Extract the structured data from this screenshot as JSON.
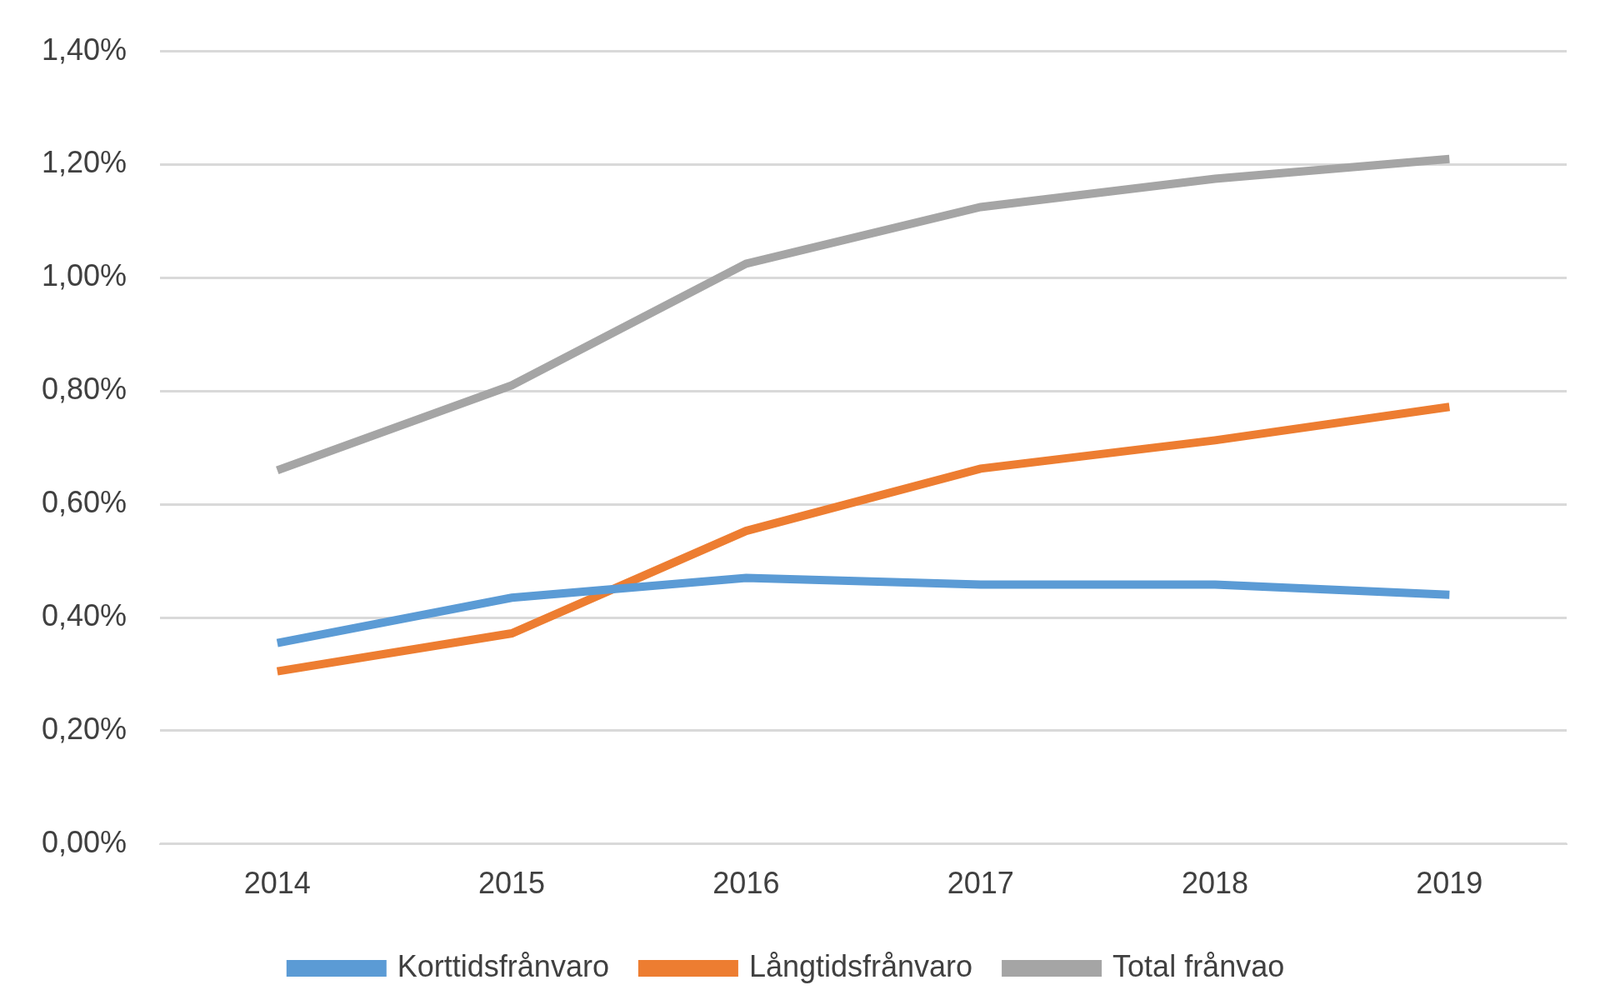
{
  "chart_data": {
    "type": "line",
    "categories": [
      "2014",
      "2015",
      "2016",
      "2017",
      "2018",
      "2019"
    ],
    "series": [
      {
        "name": "Korttidsfrånvaro",
        "color": "#5b9bd5",
        "values": [
          0.355,
          0.435,
          0.47,
          0.458,
          0.458,
          0.44
        ]
      },
      {
        "name": "Långtidsfrånvaro",
        "color": "#ed7d31",
        "values": [
          0.305,
          0.372,
          0.553,
          0.663,
          0.713,
          0.772
        ]
      },
      {
        "name": "Total frånvao",
        "color": "#a5a5a5",
        "values": [
          0.66,
          0.81,
          1.025,
          1.125,
          1.175,
          1.21
        ]
      }
    ],
    "ylim": [
      0,
      1.4
    ],
    "yticks": [
      {
        "value": 0,
        "label": "0,00%"
      },
      {
        "value": 0.2,
        "label": "0,20%"
      },
      {
        "value": 0.4,
        "label": "0,40%"
      },
      {
        "value": 0.6,
        "label": "0,60%"
      },
      {
        "value": 0.8,
        "label": "0,80%"
      },
      {
        "value": 1.0,
        "label": "1,00%"
      },
      {
        "value": 1.2,
        "label": "1,20%"
      },
      {
        "value": 1.4,
        "label": "1,40%"
      }
    ],
    "grid": true,
    "legend": "bottom"
  }
}
